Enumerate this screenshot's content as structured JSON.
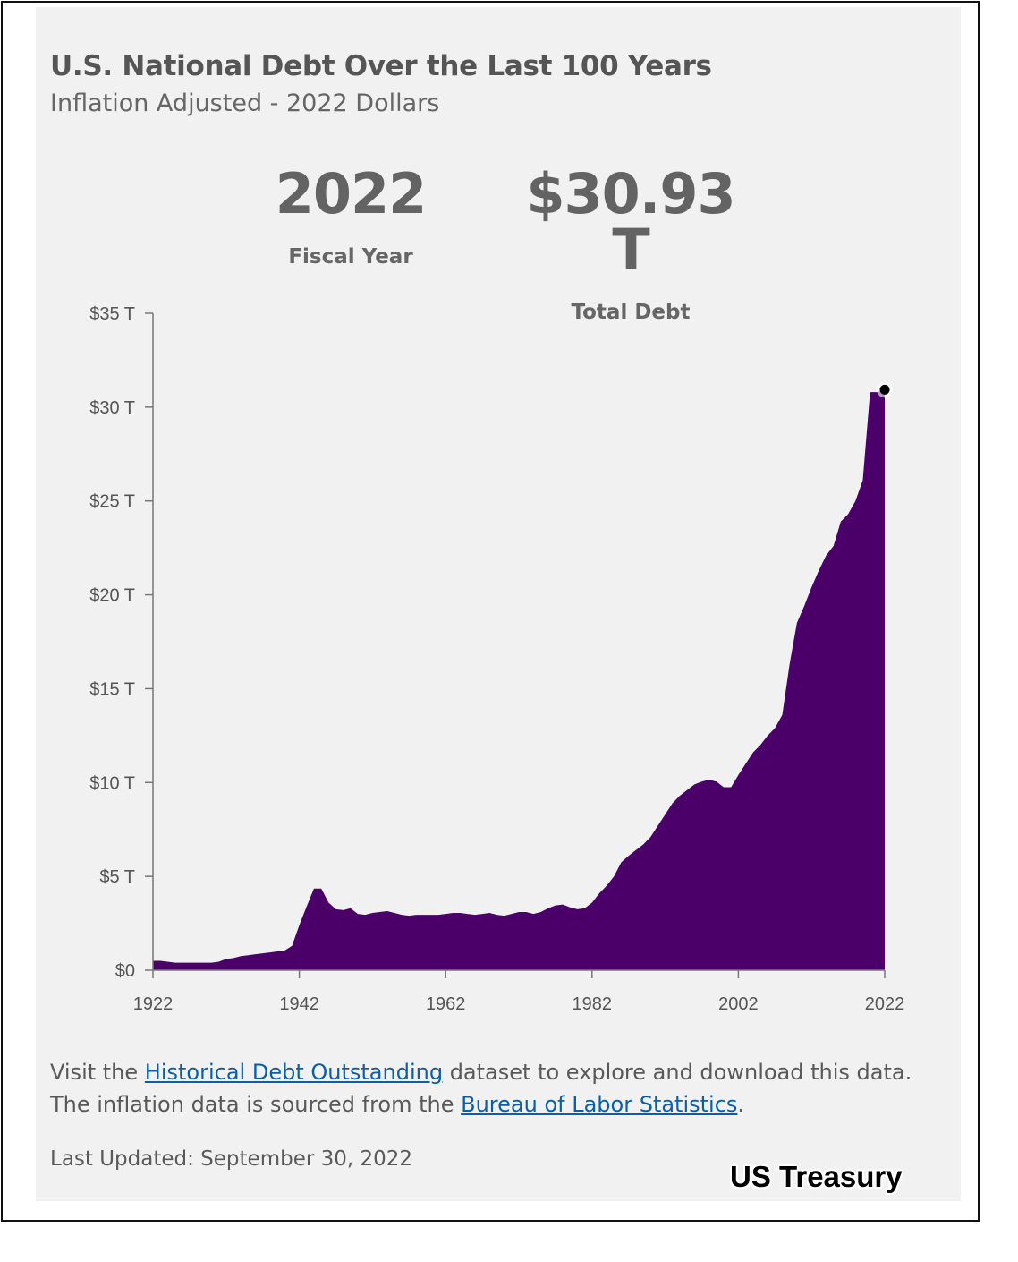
{
  "header": {
    "title": "U.S. National Debt Over the Last 100 Years",
    "subtitle": "Inflation Adjusted - 2022 Dollars"
  },
  "stats": {
    "year_value": "2022",
    "year_label": "Fiscal Year",
    "debt_value": "$30.93 T",
    "debt_label": "Total Debt"
  },
  "footer": {
    "text_1": "Visit the ",
    "link_1": "Historical Debt Outstanding",
    "text_2": " dataset to explore and download this data. The inflation data is sourced from the ",
    "link_2": "Bureau of Labor Statistics",
    "text_3": ".",
    "updated": "Last Updated: September 30, 2022"
  },
  "watermark": "US Treasury",
  "colors": {
    "area": "#4a0068",
    "axis": "#777777",
    "background": "#f1f1f1",
    "link": "#0a5fa8"
  },
  "chart_data": {
    "type": "area",
    "x_ticks": [
      "1922",
      "1942",
      "1962",
      "1982",
      "2002",
      "2022"
    ],
    "y_ticks": [
      "$0",
      "$5 T",
      "$10 T",
      "$15 T",
      "$20 T",
      "$25 T",
      "$30 T",
      "$35 T"
    ],
    "xlim": [
      1922,
      2022
    ],
    "ylim": [
      0,
      35
    ],
    "unit": "trillions of 2022 dollars",
    "highlight": {
      "x": 2022,
      "y": 30.93
    },
    "x": [
      1922,
      1923,
      1924,
      1925,
      1926,
      1927,
      1928,
      1929,
      1930,
      1931,
      1932,
      1933,
      1934,
      1935,
      1936,
      1937,
      1938,
      1939,
      1940,
      1941,
      1942,
      1943,
      1944,
      1945,
      1946,
      1947,
      1948,
      1949,
      1950,
      1951,
      1952,
      1953,
      1954,
      1955,
      1956,
      1957,
      1958,
      1959,
      1960,
      1961,
      1962,
      1963,
      1964,
      1965,
      1966,
      1967,
      1968,
      1969,
      1970,
      1971,
      1972,
      1973,
      1974,
      1975,
      1976,
      1977,
      1978,
      1979,
      1980,
      1981,
      1982,
      1983,
      1984,
      1985,
      1986,
      1987,
      1988,
      1989,
      1990,
      1991,
      1992,
      1993,
      1994,
      1995,
      1996,
      1997,
      1998,
      1999,
      2000,
      2001,
      2002,
      2003,
      2004,
      2005,
      2006,
      2007,
      2008,
      2009,
      2010,
      2011,
      2012,
      2013,
      2014,
      2015,
      2016,
      2017,
      2018,
      2019,
      2020,
      2021,
      2022
    ],
    "values": [
      0.5,
      0.5,
      0.45,
      0.4,
      0.4,
      0.4,
      0.4,
      0.4,
      0.4,
      0.45,
      0.6,
      0.65,
      0.75,
      0.8,
      0.85,
      0.9,
      0.95,
      1.0,
      1.05,
      1.3,
      2.4,
      3.4,
      4.35,
      4.35,
      3.6,
      3.25,
      3.2,
      3.3,
      3.0,
      2.95,
      3.05,
      3.1,
      3.15,
      3.05,
      2.95,
      2.9,
      2.95,
      2.95,
      2.95,
      2.95,
      3.0,
      3.05,
      3.05,
      3.0,
      2.95,
      3.0,
      3.05,
      2.95,
      2.9,
      3.0,
      3.1,
      3.1,
      3.0,
      3.1,
      3.3,
      3.45,
      3.5,
      3.35,
      3.25,
      3.3,
      3.6,
      4.1,
      4.5,
      5.0,
      5.75,
      6.1,
      6.4,
      6.7,
      7.1,
      7.7,
      8.3,
      8.9,
      9.3,
      9.6,
      9.9,
      10.05,
      10.15,
      10.05,
      9.75,
      9.75,
      10.4,
      11.0,
      11.6,
      12.0,
      12.5,
      12.9,
      13.6,
      16.3,
      18.5,
      19.4,
      20.4,
      21.3,
      22.1,
      22.6,
      23.9,
      24.3,
      25.0,
      26.1,
      30.8,
      30.8,
      30.93
    ]
  }
}
